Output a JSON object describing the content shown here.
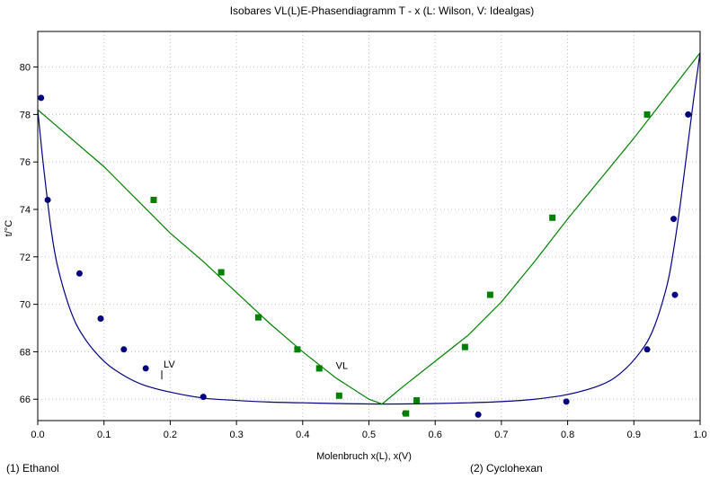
{
  "title": "Isobares VL(L)E-Phasendiagramm T - x  (L: Wilson, V: Idealgas)",
  "footer": {
    "component_1": "(1) Ethanol",
    "component_2": "(2) Cyclohexan"
  },
  "colors": {
    "lv": "#000080",
    "vl": "#008000",
    "grid": "#c0c0c0",
    "frame": "#000000"
  },
  "chart_data": {
    "type": "line",
    "title": "Isobares VL(L)E-Phasendiagramm T - x  (L: Wilson, V: Idealgas)",
    "xlabel": "Molenbruch x(L), x(V)",
    "ylabel": "t/°C",
    "xlim": [
      0,
      1
    ],
    "ylim": [
      65.1,
      81.5
    ],
    "xticks": [
      0.0,
      0.1,
      0.2,
      0.3,
      0.4,
      0.5,
      0.6,
      0.7,
      0.8,
      0.9,
      1.0
    ],
    "xtick_labels": [
      "0.0",
      "0.1",
      "0.2",
      "0.3",
      "0.4",
      "0.5",
      "0.6",
      "0.7",
      "0.8",
      "0.9",
      "1.0"
    ],
    "yticks": [
      66,
      68,
      70,
      72,
      74,
      76,
      78,
      80
    ],
    "ytick_labels": [
      "66",
      "68",
      "70",
      "72",
      "74",
      "76",
      "78",
      "80"
    ],
    "grid": true,
    "curve_labels": [
      {
        "text": "LV",
        "x": 0.19,
        "y": 66.95
      },
      {
        "text": "VL",
        "x": 0.45,
        "y": 66.9
      }
    ],
    "series": [
      {
        "name": "LV",
        "kind": "line",
        "color": "#000080",
        "x": [
          0,
          0.005,
          0.01,
          0.02,
          0.03,
          0.05,
          0.07,
          0.1,
          0.13,
          0.16,
          0.2,
          0.25,
          0.3,
          0.35,
          0.4,
          0.45,
          0.5,
          0.55,
          0.6,
          0.65,
          0.7,
          0.75,
          0.8,
          0.85,
          0.88,
          0.91,
          0.93,
          0.95,
          0.96,
          0.97,
          0.98,
          0.99,
          1.0
        ],
        "y": [
          78.2,
          76.8,
          75.5,
          73.2,
          71.6,
          69.7,
          68.6,
          67.6,
          67.0,
          66.6,
          66.3,
          66.05,
          65.95,
          65.88,
          65.85,
          65.82,
          65.8,
          65.8,
          65.82,
          65.85,
          65.9,
          66.0,
          66.2,
          66.6,
          67.1,
          68.0,
          69.0,
          70.8,
          72.3,
          74.2,
          76.4,
          78.6,
          80.6
        ]
      },
      {
        "name": "VL",
        "kind": "line",
        "color": "#008000",
        "x": [
          0,
          0.05,
          0.1,
          0.15,
          0.2,
          0.25,
          0.3,
          0.35,
          0.4,
          0.45,
          0.5,
          0.52,
          0.55,
          0.6,
          0.65,
          0.7,
          0.75,
          0.8,
          0.85,
          0.9,
          0.95,
          1.0
        ],
        "y": [
          78.2,
          77.0,
          75.8,
          74.4,
          73.0,
          71.8,
          70.5,
          69.2,
          68.0,
          66.9,
          66.0,
          65.8,
          66.5,
          67.6,
          68.7,
          70.1,
          71.8,
          73.6,
          75.3,
          77.0,
          78.8,
          80.6
        ]
      },
      {
        "name": "LV data",
        "kind": "scatter",
        "marker": "circle",
        "color": "#000080",
        "x": [
          0.005,
          0.015,
          0.063,
          0.095,
          0.13,
          0.163,
          0.25,
          0.555,
          0.665,
          0.798,
          0.92,
          0.96,
          0.962,
          0.982
        ],
        "y": [
          78.7,
          74.4,
          71.3,
          69.4,
          68.1,
          67.3,
          66.1,
          65.4,
          65.35,
          65.9,
          68.1,
          73.6,
          70.4,
          78.0
        ]
      },
      {
        "name": "VL data",
        "kind": "scatter",
        "marker": "square",
        "color": "#008000",
        "x": [
          0.175,
          0.277,
          0.333,
          0.392,
          0.425,
          0.455,
          0.556,
          0.572,
          0.645,
          0.683,
          0.777,
          0.92
        ],
        "y": [
          74.4,
          71.35,
          69.45,
          68.1,
          67.3,
          66.15,
          65.4,
          65.95,
          68.2,
          70.4,
          73.65,
          78.0
        ]
      }
    ]
  }
}
